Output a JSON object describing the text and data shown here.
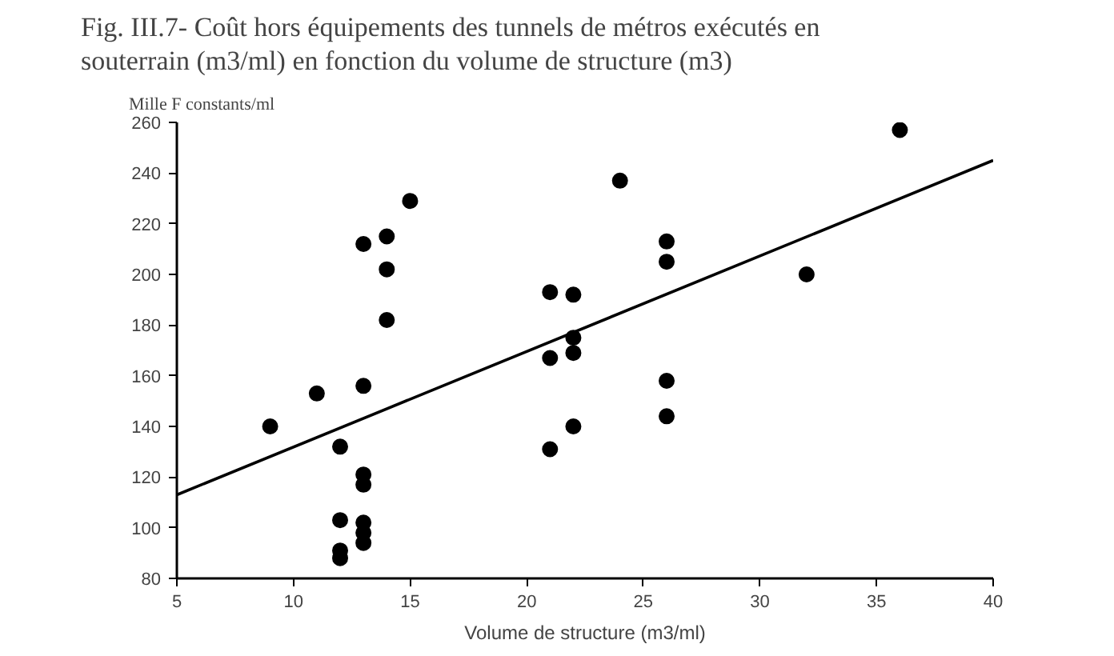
{
  "chart_data": {
    "type": "scatter",
    "title": "Fig. III.7- Coût hors équipements des tunnels de métros exécutés en souterrain (m3/ml) en fonction du volume de structure (m3)",
    "xlabel": "Volume de structure (m3/ml)",
    "ylabel": "Mille F constants/ml",
    "xlim": [
      5,
      40
    ],
    "ylim": [
      80,
      260
    ],
    "xticks": [
      5,
      10,
      15,
      20,
      25,
      30,
      35,
      40
    ],
    "yticks": [
      80,
      100,
      120,
      140,
      160,
      180,
      200,
      220,
      240,
      260
    ],
    "series": [
      {
        "color": "#000000",
        "marker": "circle",
        "x": [
          9,
          11,
          12,
          12,
          12,
          12,
          13,
          13,
          13,
          13,
          13,
          13,
          13,
          14,
          14,
          14,
          15,
          21,
          21,
          21,
          22,
          22,
          22,
          22,
          24,
          26,
          26,
          26,
          26,
          32,
          36
        ],
        "values": [
          140,
          153,
          132,
          103,
          91,
          88,
          212,
          156,
          121,
          117,
          102,
          98,
          94,
          215,
          202,
          182,
          229,
          193,
          167,
          131,
          192,
          175,
          169,
          140,
          237,
          213,
          205,
          158,
          144,
          200,
          257
        ]
      },
      {
        "type": "line",
        "color": "#000000",
        "line_style": "solid",
        "x": [
          5,
          40
        ],
        "values": [
          113,
          245
        ]
      }
    ]
  }
}
